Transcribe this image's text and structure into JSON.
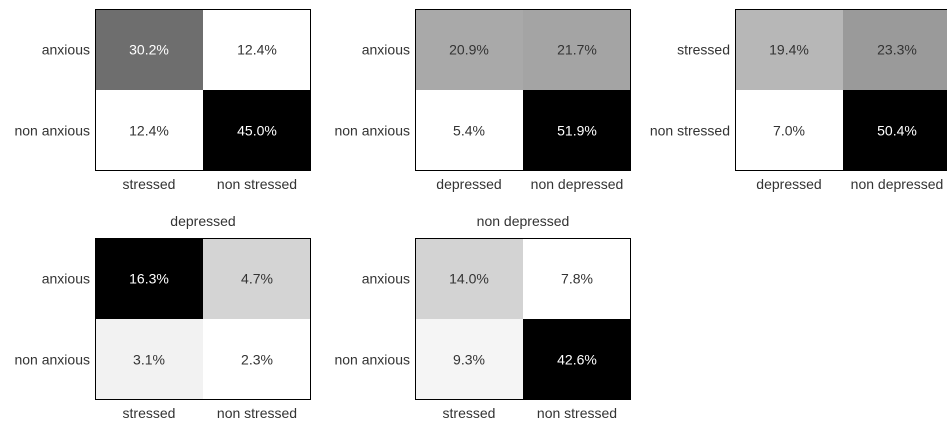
{
  "chart_data": [
    {
      "type": "heatmap",
      "title": "",
      "rows": [
        "anxious",
        "non anxious"
      ],
      "cols": [
        "stressed",
        "non stressed"
      ],
      "values": [
        [
          30.2,
          12.4
        ],
        [
          12.4,
          45.0
        ]
      ],
      "labels": [
        [
          "30.2%",
          "12.4%"
        ],
        [
          "12.4%",
          "45.0%"
        ]
      ],
      "colors": [
        [
          "#6e6e6e",
          "#ffffff"
        ],
        [
          "#ffffff",
          "#000000"
        ]
      ]
    },
    {
      "type": "heatmap",
      "title": "",
      "rows": [
        "anxious",
        "non anxious"
      ],
      "cols": [
        "depressed",
        "non depressed"
      ],
      "values": [
        [
          20.9,
          21.7
        ],
        [
          5.4,
          51.9
        ]
      ],
      "labels": [
        [
          "20.9%",
          "21.7%"
        ],
        [
          "5.4%",
          "51.9%"
        ]
      ],
      "colors": [
        [
          "#a9a9a9",
          "#a4a4a4"
        ],
        [
          "#ffffff",
          "#000000"
        ]
      ]
    },
    {
      "type": "heatmap",
      "title": "",
      "rows": [
        "stressed",
        "non stressed"
      ],
      "cols": [
        "depressed",
        "non depressed"
      ],
      "values": [
        [
          19.4,
          23.3
        ],
        [
          7.0,
          50.4
        ]
      ],
      "labels": [
        [
          "19.4%",
          "23.3%"
        ],
        [
          "7.0%",
          "50.4%"
        ]
      ],
      "colors": [
        [
          "#b7b7b7",
          "#9a9a9a"
        ],
        [
          "#ffffff",
          "#000000"
        ]
      ]
    },
    {
      "type": "heatmap",
      "title": "depressed",
      "rows": [
        "anxious",
        "non anxious"
      ],
      "cols": [
        "stressed",
        "non stressed"
      ],
      "values": [
        [
          16.3,
          4.7
        ],
        [
          3.1,
          2.3
        ]
      ],
      "labels": [
        [
          "16.3%",
          "4.7%"
        ],
        [
          "3.1%",
          "2.3%"
        ]
      ],
      "colors": [
        [
          "#000000",
          "#d4d4d4"
        ],
        [
          "#f2f2f2",
          "#ffffff"
        ]
      ]
    },
    {
      "type": "heatmap",
      "title": "non depressed",
      "rows": [
        "anxious",
        "non anxious"
      ],
      "cols": [
        "stressed",
        "non stressed"
      ],
      "values": [
        [
          14.0,
          7.8
        ],
        [
          9.3,
          42.6
        ]
      ],
      "labels": [
        [
          "14.0%",
          "7.8%"
        ],
        [
          "9.3%",
          "42.6%"
        ]
      ],
      "colors": [
        [
          "#d3d3d3",
          "#ffffff"
        ],
        [
          "#f5f5f5",
          "#000000"
        ]
      ]
    }
  ]
}
